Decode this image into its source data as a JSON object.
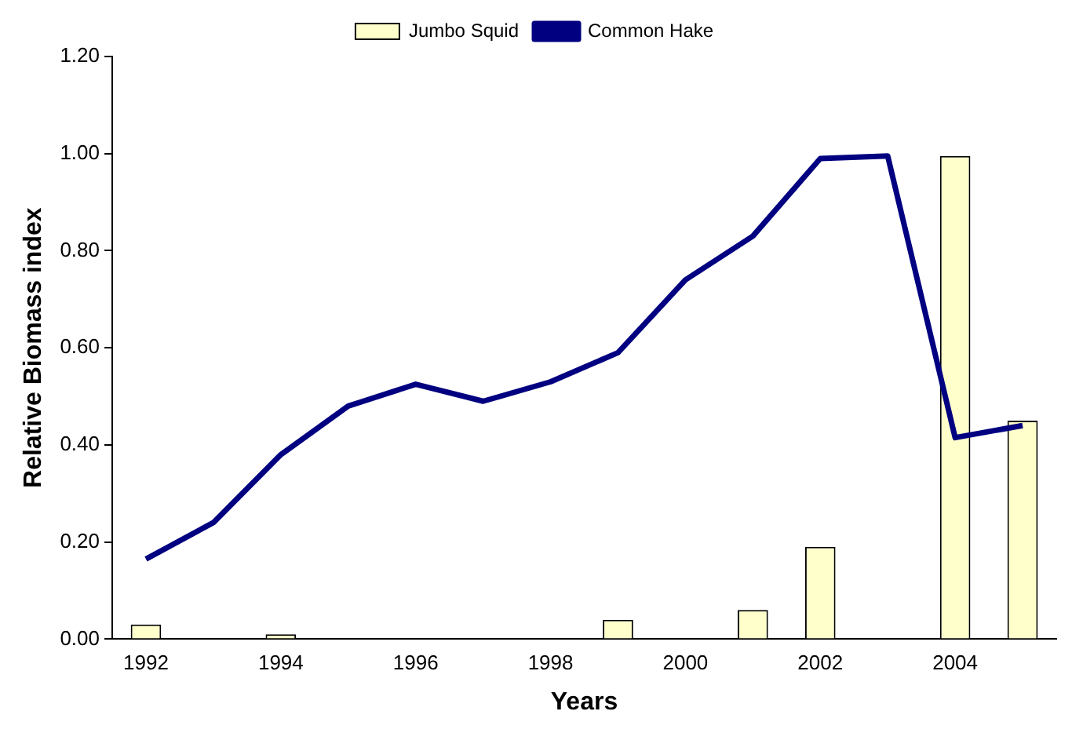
{
  "chart_data": {
    "type": "bar",
    "xlabel": "Years",
    "ylabel": "Relative Biomass index",
    "categories": [
      "1992",
      null,
      "1994",
      null,
      "1996",
      null,
      "1998",
      null,
      "2000",
      null,
      "2002",
      null,
      "2004",
      null
    ],
    "series": [
      {
        "name": "Jumbo Squid",
        "color": "#ffffcc",
        "values": [
          0.03,
          null,
          0.01,
          null,
          null,
          null,
          null,
          0.04,
          null,
          0.06,
          0.19,
          null,
          0.995,
          0.45
        ]
      },
      {
        "name": "Common Hake",
        "type": "line",
        "color": "#000080",
        "values": [
          0.165,
          0.24,
          0.38,
          0.48,
          0.525,
          0.49,
          0.53,
          0.59,
          0.74,
          0.83,
          0.99,
          0.995,
          0.415,
          0.44
        ]
      }
    ],
    "ylim": [
      0,
      1.2
    ],
    "yticks": [
      {
        "value": 0,
        "label": "0.00"
      },
      {
        "value": 0.2,
        "label": "0.20"
      },
      {
        "value": 0.4,
        "label": "0.40"
      },
      {
        "value": 0.6,
        "label": "0.60"
      },
      {
        "value": 0.8,
        "label": "0.80"
      },
      {
        "value": 1,
        "label": "1.00"
      },
      {
        "value": 1.2,
        "label": "1.20"
      }
    ],
    "grid": false,
    "legend": "top",
    "marker": "none"
  }
}
